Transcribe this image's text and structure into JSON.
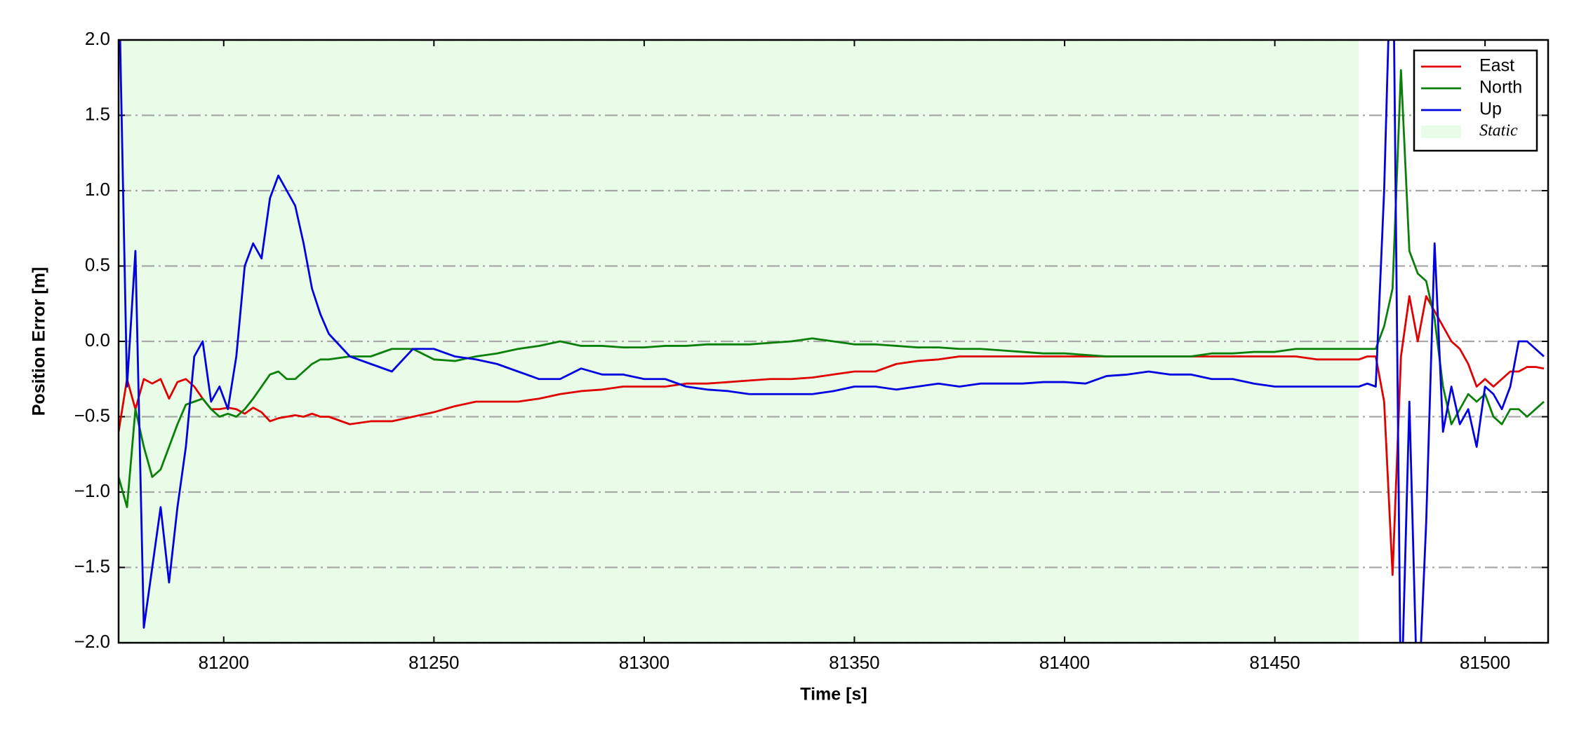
{
  "chart_data": {
    "type": "line",
    "x_label": "Time [s]",
    "y_label": "Position Error [m]",
    "xlim": [
      81175,
      81515
    ],
    "ylim": [
      -2.0,
      2.0
    ],
    "xticks": [
      81200,
      81250,
      81300,
      81350,
      81400,
      81450,
      81500
    ],
    "yticks": [
      {
        "value": -2.0,
        "label": "−2.0"
      },
      {
        "value": -1.5,
        "label": "−1.5"
      },
      {
        "value": -1.0,
        "label": "−1.0"
      },
      {
        "value": -0.5,
        "label": "−0.5"
      },
      {
        "value": 0,
        "label": "0.0"
      },
      {
        "value": 0.5,
        "label": "0.5"
      },
      {
        "value": 1.0,
        "label": "1.0"
      },
      {
        "value": 1.5,
        "label": "1.5"
      },
      {
        "value": 2.0,
        "label": "2.0"
      }
    ],
    "grid": true,
    "legend": "upper right",
    "spans": [
      {
        "name": "Static",
        "color": "#e8fce8",
        "x": [
          81175,
          81470
        ]
      }
    ],
    "x": [
      81175,
      81177,
      81179,
      81181,
      81183,
      81185,
      81187,
      81189,
      81191,
      81193,
      81195,
      81197,
      81199,
      81201,
      81203,
      81205,
      81207,
      81209,
      81211,
      81213,
      81215,
      81217,
      81219,
      81221,
      81223,
      81225,
      81230,
      81235,
      81240,
      81245,
      81250,
      81255,
      81260,
      81265,
      81270,
      81275,
      81280,
      81285,
      81290,
      81295,
      81300,
      81305,
      81310,
      81315,
      81320,
      81325,
      81330,
      81335,
      81340,
      81345,
      81350,
      81355,
      81360,
      81365,
      81370,
      81375,
      81380,
      81385,
      81390,
      81395,
      81400,
      81405,
      81410,
      81415,
      81420,
      81425,
      81430,
      81435,
      81440,
      81445,
      81450,
      81455,
      81460,
      81465,
      81470,
      81472,
      81474,
      81476,
      81478,
      81480,
      81482,
      81484,
      81486,
      81488,
      81490,
      81492,
      81494,
      81496,
      81498,
      81500,
      81502,
      81504,
      81506,
      81508,
      81510,
      81512,
      81514
    ],
    "series": [
      {
        "name": "East",
        "color": "#e00000",
        "values": [
          -0.6,
          -0.25,
          -0.45,
          -0.25,
          -0.28,
          -0.25,
          -0.38,
          -0.27,
          -0.25,
          -0.3,
          -0.38,
          -0.45,
          -0.45,
          -0.44,
          -0.45,
          -0.48,
          -0.44,
          -0.47,
          -0.53,
          -0.51,
          -0.5,
          -0.49,
          -0.5,
          -0.48,
          -0.5,
          -0.5,
          -0.55,
          -0.53,
          -0.53,
          -0.5,
          -0.47,
          -0.43,
          -0.4,
          -0.4,
          -0.4,
          -0.38,
          -0.35,
          -0.33,
          -0.32,
          -0.3,
          -0.3,
          -0.3,
          -0.28,
          -0.28,
          -0.27,
          -0.26,
          -0.25,
          -0.25,
          -0.24,
          -0.22,
          -0.2,
          -0.2,
          -0.15,
          -0.13,
          -0.12,
          -0.1,
          -0.1,
          -0.1,
          -0.1,
          -0.1,
          -0.1,
          -0.1,
          -0.1,
          -0.1,
          -0.1,
          -0.1,
          -0.1,
          -0.1,
          -0.1,
          -0.1,
          -0.1,
          -0.1,
          -0.12,
          -0.12,
          -0.12,
          -0.1,
          -0.1,
          -0.4,
          -1.55,
          -0.1,
          0.3,
          0,
          0.3,
          0.2,
          0.1,
          0,
          -0.05,
          -0.15,
          -0.3,
          -0.25,
          -0.3,
          -0.25,
          -0.2,
          -0.2,
          -0.17,
          -0.17,
          -0.18
        ]
      },
      {
        "name": "North",
        "color": "#0a800a",
        "values": [
          -0.9,
          -1.1,
          -0.45,
          -0.7,
          -0.9,
          -0.85,
          -0.7,
          -0.55,
          -0.42,
          -0.4,
          -0.38,
          -0.45,
          -0.5,
          -0.48,
          -0.5,
          -0.45,
          -0.38,
          -0.3,
          -0.22,
          -0.2,
          -0.25,
          -0.25,
          -0.2,
          -0.15,
          -0.12,
          -0.12,
          -0.1,
          -0.1,
          -0.05,
          -0.05,
          -0.12,
          -0.13,
          -0.1,
          -0.08,
          -0.05,
          -0.03,
          0,
          -0.03,
          -0.03,
          -0.04,
          -0.04,
          -0.03,
          -0.03,
          -0.02,
          -0.02,
          -0.02,
          -0.01,
          0,
          0.02,
          0,
          -0.02,
          -0.02,
          -0.03,
          -0.04,
          -0.04,
          -0.05,
          -0.05,
          -0.06,
          -0.07,
          -0.08,
          -0.08,
          -0.09,
          -0.1,
          -0.1,
          -0.1,
          -0.1,
          -0.1,
          -0.08,
          -0.08,
          -0.07,
          -0.07,
          -0.05,
          -0.05,
          -0.05,
          -0.05,
          -0.05,
          -0.05,
          0.1,
          0.35,
          1.8,
          0.6,
          0.45,
          0.4,
          0.15,
          -0.3,
          -0.55,
          -0.45,
          -0.35,
          -0.4,
          -0.35,
          -0.5,
          -0.55,
          -0.45,
          -0.45,
          -0.5,
          -0.45,
          -0.4
        ]
      },
      {
        "name": "Up",
        "color": "#0000e0",
        "values": [
          2.5,
          -0.3,
          0.6,
          -1.9,
          -1.5,
          -1.1,
          -1.6,
          -1.1,
          -0.7,
          -0.1,
          0,
          -0.4,
          -0.3,
          -0.45,
          -0.1,
          0.5,
          0.65,
          0.55,
          0.95,
          1.1,
          1.0,
          0.9,
          0.65,
          0.35,
          0.18,
          0.05,
          -0.1,
          -0.15,
          -0.2,
          -0.05,
          -0.05,
          -0.1,
          -0.12,
          -0.15,
          -0.2,
          -0.25,
          -0.25,
          -0.18,
          -0.22,
          -0.22,
          -0.25,
          -0.25,
          -0.3,
          -0.32,
          -0.33,
          -0.35,
          -0.35,
          -0.35,
          -0.35,
          -0.33,
          -0.3,
          -0.3,
          -0.32,
          -0.3,
          -0.28,
          -0.3,
          -0.28,
          -0.28,
          -0.28,
          -0.27,
          -0.27,
          -0.28,
          -0.23,
          -0.22,
          -0.2,
          -0.22,
          -0.22,
          -0.25,
          -0.25,
          -0.28,
          -0.3,
          -0.3,
          -0.3,
          -0.3,
          -0.3,
          -0.28,
          -0.3,
          1.0,
          3.0,
          -2.5,
          -0.4,
          -2.5,
          -1.2,
          0.65,
          -0.6,
          -0.3,
          -0.55,
          -0.45,
          -0.7,
          -0.3,
          -0.35,
          -0.45,
          -0.3,
          0,
          0,
          -0.05,
          -0.1
        ]
      }
    ]
  }
}
